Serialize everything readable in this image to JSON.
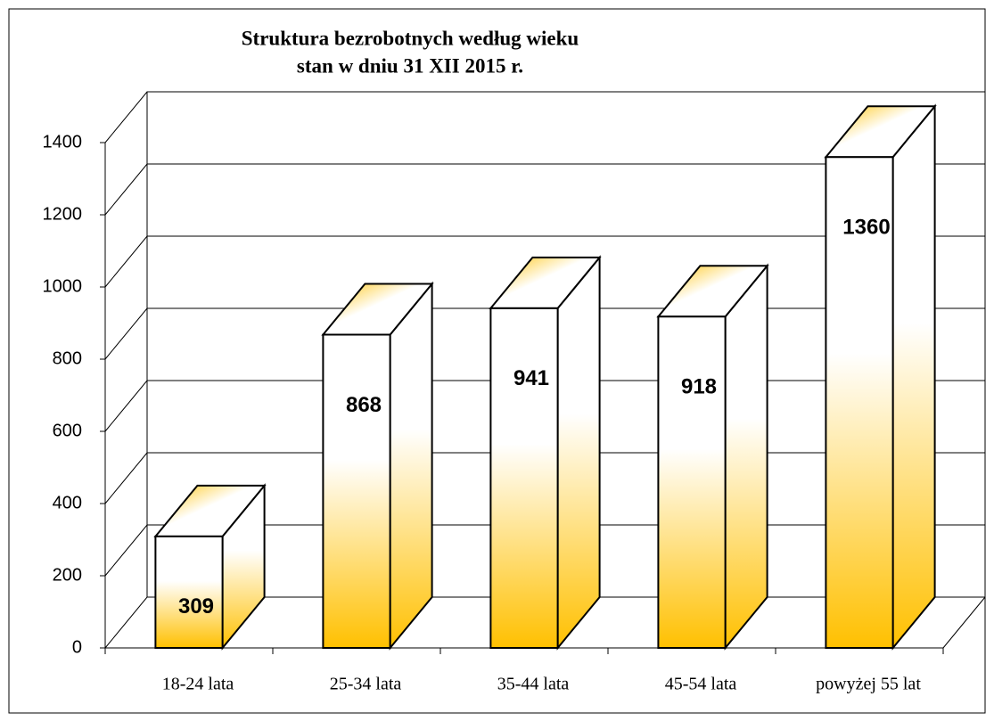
{
  "chart_data": {
    "type": "bar3d",
    "title": "Struktura bezrobotnych według wieku",
    "subtitle": "stan w dniu 31 XII 2015 r.",
    "categories": [
      "18-24 lata",
      "25-34 lata",
      "35-44 lata",
      "45-54 lata",
      "powyżej 55 lat"
    ],
    "values": [
      309,
      868,
      941,
      918,
      1360
    ],
    "color": "#ffc000",
    "ylim": [
      0,
      1400
    ],
    "yticks": [
      0,
      200,
      400,
      600,
      800,
      1000,
      1200,
      1400
    ],
    "grid": true
  }
}
